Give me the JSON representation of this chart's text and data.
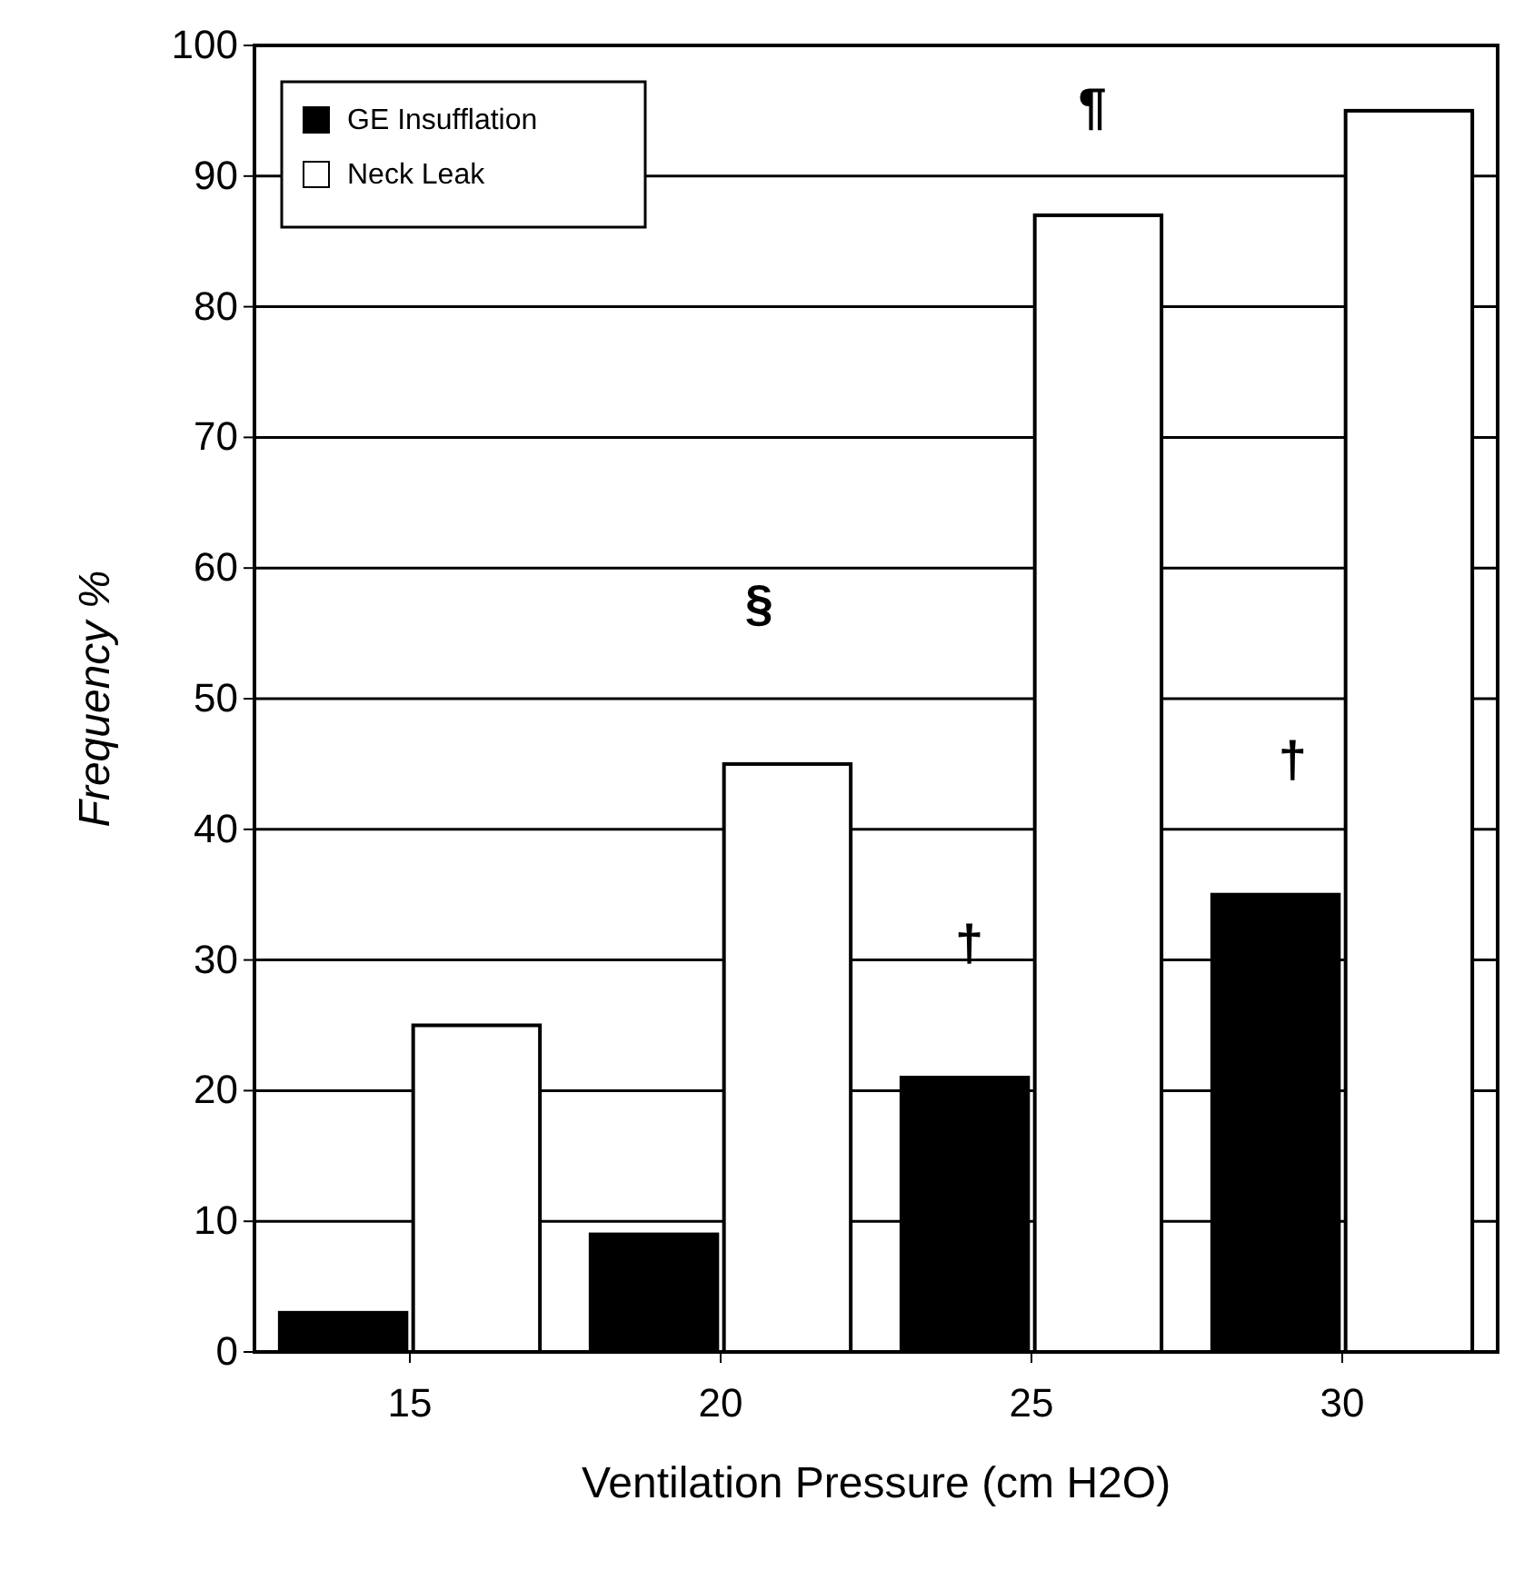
{
  "chart_data": {
    "type": "bar",
    "xlabel": "Ventilation Pressure (cm H2O)",
    "ylabel": "Frequency %",
    "categories": [
      "15",
      "20",
      "25",
      "30"
    ],
    "series": [
      {
        "name": "GE Insufflation",
        "color": "#000000",
        "values": [
          3,
          9,
          21,
          35
        ]
      },
      {
        "name": "Neck Leak",
        "color": "#ffffff",
        "values": [
          25,
          45,
          87,
          95
        ]
      }
    ],
    "ylim": [
      0,
      100
    ],
    "yticks": [
      0,
      10,
      20,
      30,
      40,
      50,
      60,
      70,
      80,
      90,
      100
    ],
    "grid": "y",
    "legend": "top left",
    "annotations": [
      "§",
      "†",
      "†",
      "¶"
    ]
  }
}
